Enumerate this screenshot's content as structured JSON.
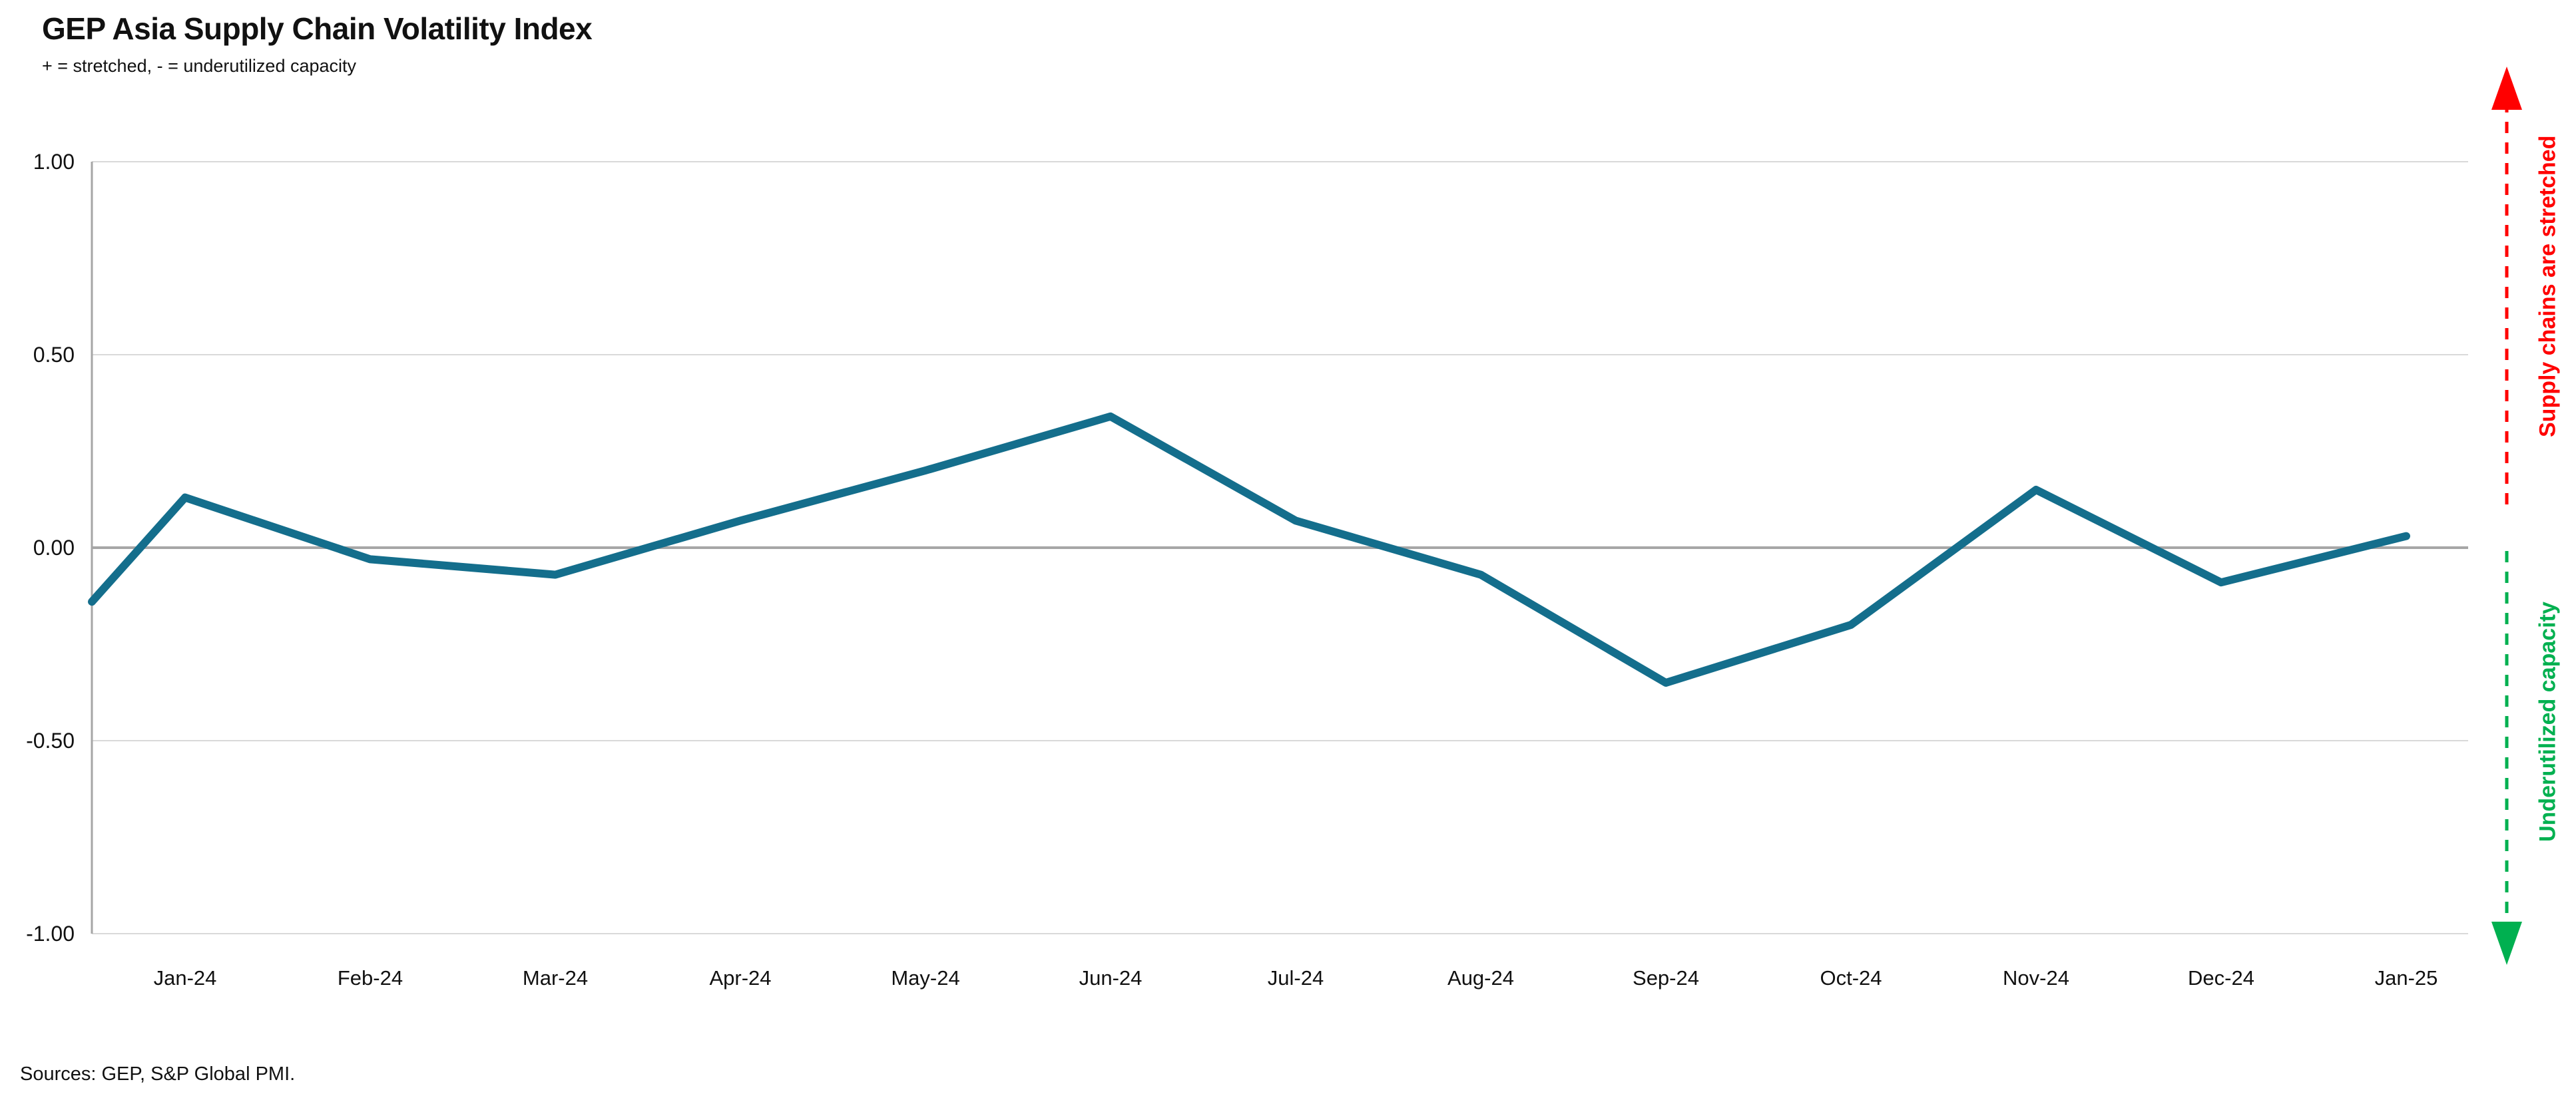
{
  "chart": {
    "title": "GEP Asia Supply Chain Volatility Index",
    "subtitle": "+ = stretched, - = underutilized capacity",
    "source_note": "Sources: GEP, S&P Global PMI.",
    "annotations": {
      "top_right": "Supply chains are stretched",
      "bottom_right": "Underutilized capacity"
    },
    "colors": {
      "series_line": "#146e8c",
      "zero_line": "#a6a6a6",
      "gridline": "#d9d9d9",
      "y_axis_line": "#a6a6a6",
      "bottom_axis_line": "#d9d9d9",
      "stretched_arrow": "#ff0000",
      "underutilized_arrow": "#00b050",
      "text": "#111111"
    }
  },
  "chart_data": {
    "type": "line",
    "title": "GEP Asia Supply Chain Volatility Index",
    "subtitle": "+ = stretched, - = underutilized capacity",
    "x": [
      "",
      "Jan-24",
      "Feb-24",
      "Mar-24",
      "Apr-24",
      "May-24",
      "Jun-24",
      "Jul-24",
      "Aug-24",
      "Sep-24",
      "Oct-24",
      "Nov-24",
      "Dec-24",
      "Jan-25"
    ],
    "series": [
      {
        "name": "GEP Asia Supply Chain Volatility Index",
        "values": [
          -0.14,
          0.13,
          -0.03,
          -0.07,
          0.07,
          0.2,
          0.34,
          0.07,
          -0.07,
          -0.35,
          -0.2,
          0.15,
          -0.09,
          0.03
        ]
      }
    ],
    "y_ticks": [
      {
        "value": 1.0,
        "label": "1.00"
      },
      {
        "value": 0.5,
        "label": "0.50"
      },
      {
        "value": 0.0,
        "label": "0.00"
      },
      {
        "value": -0.5,
        "label": "-0.50"
      },
      {
        "value": -1.0,
        "label": "-1.00"
      }
    ],
    "ylim": [
      -1.0,
      1.0
    ],
    "xlabel": "",
    "ylabel": "",
    "grid": true,
    "legend": "none",
    "notes": "First data point (Dec-23) is plotted at the left plot edge without an axis label; zero line darker than other gridlines; dashed red up-arrow and dashed green down-arrow along right edge."
  }
}
